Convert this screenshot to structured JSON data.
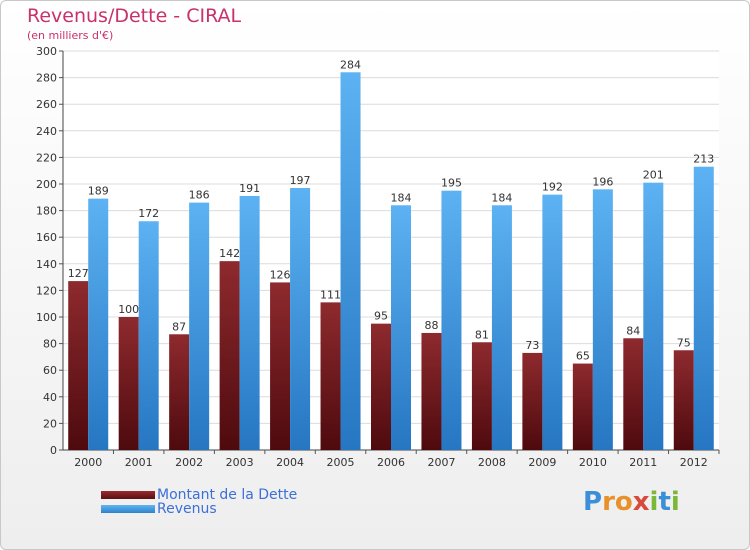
{
  "chart_data": {
    "type": "bar",
    "title": "Revenus/Dette - CIRAL",
    "subtitle": "(en milliers d'€)",
    "categories": [
      "2000",
      "2001",
      "2002",
      "2003",
      "2004",
      "2005",
      "2006",
      "2007",
      "2008",
      "2009",
      "2010",
      "2011",
      "2012"
    ],
    "series": [
      {
        "name": "Montant de la Dette",
        "color": "#7a1a1f",
        "values": [
          127,
          100,
          87,
          142,
          126,
          111,
          95,
          88,
          81,
          73,
          65,
          84,
          75
        ]
      },
      {
        "name": "Revenus",
        "color": "#3a9ae4",
        "values": [
          189,
          172,
          186,
          191,
          197,
          284,
          184,
          195,
          184,
          192,
          196,
          201,
          213
        ]
      }
    ],
    "ylim": [
      0,
      300
    ],
    "yticks": [
      0,
      20,
      40,
      60,
      80,
      100,
      120,
      140,
      160,
      180,
      200,
      220,
      240,
      260,
      280,
      300
    ],
    "grid": true,
    "legend": "bottom-left"
  },
  "logo": {
    "text": "Proxiti",
    "letters": [
      "P",
      "r",
      "o",
      "x",
      "i",
      "t",
      "i"
    ]
  }
}
